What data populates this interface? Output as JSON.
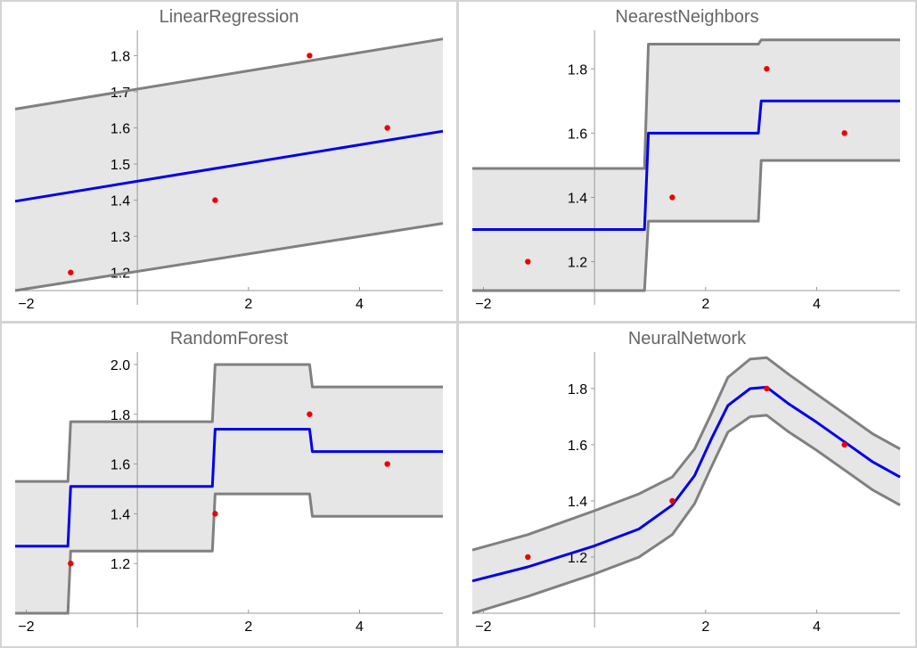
{
  "chart_data": [
    {
      "type": "line",
      "title": "LinearRegression",
      "xlim": [
        -2.2,
        5.5
      ],
      "ylim": [
        1.15,
        1.87
      ],
      "xticks": [
        -2,
        2,
        4
      ],
      "yticks": [
        1.2,
        1.3,
        1.4,
        1.5,
        1.6,
        1.7,
        1.8
      ],
      "x_axis_at_y": 1.15,
      "y_axis_at_x": 0,
      "points": [
        [
          -1.2,
          1.2
        ],
        [
          1.4,
          1.4
        ],
        [
          3.1,
          1.8
        ],
        [
          4.5,
          1.6
        ]
      ],
      "prediction": [
        [
          -2.2,
          1.397
        ],
        [
          5.5,
          1.591
        ]
      ],
      "upper": [
        [
          -2.2,
          1.652
        ],
        [
          5.5,
          1.846
        ]
      ],
      "lower": [
        [
          -2.2,
          1.15
        ],
        [
          5.5,
          1.336
        ]
      ]
    },
    {
      "type": "line",
      "title": "NearestNeighbors",
      "xlim": [
        -2.2,
        5.5
      ],
      "ylim": [
        1.11,
        1.92
      ],
      "xticks": [
        -2,
        2,
        4
      ],
      "yticks": [
        1.2,
        1.4,
        1.6,
        1.8
      ],
      "x_axis_at_y": 1.11,
      "y_axis_at_x": 0,
      "points": [
        [
          -1.2,
          1.2
        ],
        [
          1.4,
          1.4
        ],
        [
          3.1,
          1.8
        ],
        [
          4.5,
          1.6
        ]
      ],
      "prediction": [
        [
          -2.2,
          1.3
        ],
        [
          0.9,
          1.3
        ],
        [
          0.97,
          1.6
        ],
        [
          2.95,
          1.6
        ],
        [
          3.0,
          1.7
        ],
        [
          5.5,
          1.7
        ]
      ],
      "upper": [
        [
          -2.2,
          1.49
        ],
        [
          0.9,
          1.49
        ],
        [
          0.97,
          1.877
        ],
        [
          2.95,
          1.877
        ],
        [
          3.0,
          1.89
        ],
        [
          5.5,
          1.89
        ]
      ],
      "lower": [
        [
          -2.2,
          1.11
        ],
        [
          0.9,
          1.11
        ],
        [
          0.97,
          1.326
        ],
        [
          2.95,
          1.326
        ],
        [
          3.0,
          1.515
        ],
        [
          5.5,
          1.515
        ]
      ]
    },
    {
      "type": "line",
      "title": "RandomForest",
      "xlim": [
        -2.2,
        5.5
      ],
      "ylim": [
        1.0,
        2.05
      ],
      "xticks": [
        -2,
        2,
        4
      ],
      "yticks": [
        1.2,
        1.4,
        1.6,
        1.8,
        2.0
      ],
      "x_axis_at_y": 1.0,
      "y_axis_at_x": 0,
      "points": [
        [
          -1.2,
          1.2
        ],
        [
          1.4,
          1.4
        ],
        [
          3.1,
          1.8
        ],
        [
          4.5,
          1.6
        ]
      ],
      "prediction": [
        [
          -2.2,
          1.27
        ],
        [
          -1.25,
          1.27
        ],
        [
          -1.2,
          1.51
        ],
        [
          1.35,
          1.51
        ],
        [
          1.4,
          1.74
        ],
        [
          3.1,
          1.74
        ],
        [
          3.15,
          1.65
        ],
        [
          5.5,
          1.65
        ]
      ],
      "upper": [
        [
          -2.2,
          1.53
        ],
        [
          -1.25,
          1.53
        ],
        [
          -1.2,
          1.77
        ],
        [
          1.35,
          1.77
        ],
        [
          1.4,
          2.0
        ],
        [
          3.1,
          2.0
        ],
        [
          3.15,
          1.91
        ],
        [
          5.5,
          1.91
        ]
      ],
      "lower": [
        [
          -2.2,
          1.0
        ],
        [
          -1.25,
          1.0
        ],
        [
          -1.2,
          1.25
        ],
        [
          1.35,
          1.25
        ],
        [
          1.4,
          1.48
        ],
        [
          3.1,
          1.48
        ],
        [
          3.15,
          1.39
        ],
        [
          5.5,
          1.39
        ]
      ]
    },
    {
      "type": "line",
      "title": "NeuralNetwork",
      "xlim": [
        -2.2,
        5.5
      ],
      "ylim": [
        1.0,
        1.93
      ],
      "xticks": [
        -2,
        2,
        4
      ],
      "yticks": [
        1.2,
        1.4,
        1.6,
        1.8
      ],
      "x_axis_at_y": 1.0,
      "y_axis_at_x": 0,
      "points": [
        [
          -1.2,
          1.2
        ],
        [
          1.4,
          1.4
        ],
        [
          3.1,
          1.8
        ],
        [
          4.5,
          1.6
        ]
      ],
      "prediction": [
        [
          -2.2,
          1.115
        ],
        [
          -1.2,
          1.165
        ],
        [
          0,
          1.24
        ],
        [
          0.8,
          1.3
        ],
        [
          1.4,
          1.385
        ],
        [
          1.8,
          1.49
        ],
        [
          2.1,
          1.62
        ],
        [
          2.4,
          1.74
        ],
        [
          2.8,
          1.8
        ],
        [
          3.1,
          1.805
        ],
        [
          3.5,
          1.745
        ],
        [
          4.0,
          1.68
        ],
        [
          4.5,
          1.61
        ],
        [
          5.0,
          1.54
        ],
        [
          5.5,
          1.485
        ]
      ],
      "upper": [
        [
          -2.2,
          1.225
        ],
        [
          -1.2,
          1.28
        ],
        [
          0,
          1.365
        ],
        [
          0.8,
          1.425
        ],
        [
          1.4,
          1.485
        ],
        [
          1.8,
          1.585
        ],
        [
          2.1,
          1.71
        ],
        [
          2.4,
          1.84
        ],
        [
          2.8,
          1.905
        ],
        [
          3.1,
          1.91
        ],
        [
          3.5,
          1.85
        ],
        [
          4.0,
          1.78
        ],
        [
          4.5,
          1.71
        ],
        [
          5.0,
          1.64
        ],
        [
          5.5,
          1.585
        ]
      ],
      "lower": [
        [
          -2.2,
          1.0
        ],
        [
          -1.2,
          1.06
        ],
        [
          0,
          1.14
        ],
        [
          0.8,
          1.2
        ],
        [
          1.4,
          1.28
        ],
        [
          1.8,
          1.39
        ],
        [
          2.1,
          1.52
        ],
        [
          2.4,
          1.645
        ],
        [
          2.8,
          1.7
        ],
        [
          3.1,
          1.705
        ],
        [
          3.5,
          1.645
        ],
        [
          4.0,
          1.58
        ],
        [
          4.5,
          1.51
        ],
        [
          5.0,
          1.44
        ],
        [
          5.5,
          1.385
        ]
      ]
    }
  ],
  "colors": {
    "band_fill": "#e6e6e6",
    "band_edge": "#808080",
    "prediction": "#0000ee",
    "points": "#ee0000",
    "axis": "#999999",
    "title": "#666666",
    "tick_label": "#000000"
  }
}
